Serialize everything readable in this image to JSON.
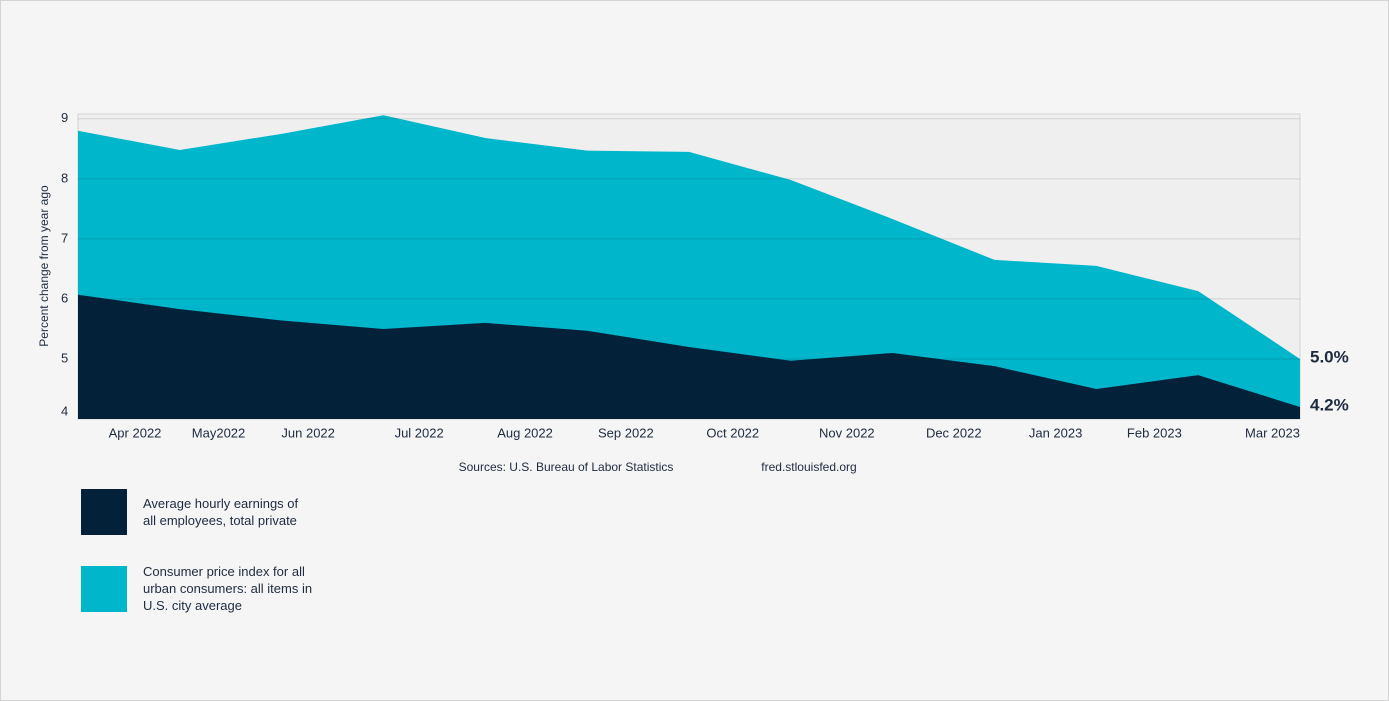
{
  "chart_data": {
    "type": "area",
    "y_label": "Percent change from year ago",
    "x": [
      0,
      1,
      2,
      3,
      4,
      5,
      6,
      7,
      8,
      9,
      10,
      11,
      12
    ],
    "xlim": [
      0,
      12
    ],
    "xticks": [
      {
        "value": 0.56,
        "label": "Apr 2022"
      },
      {
        "value": 1.38,
        "label": "May2022"
      },
      {
        "value": 2.26,
        "label": "Jun 2022"
      },
      {
        "value": 3.35,
        "label": "Jul 2022"
      },
      {
        "value": 4.39,
        "label": "Aug 2022"
      },
      {
        "value": 5.38,
        "label": "Sep 2022"
      },
      {
        "value": 6.43,
        "label": "Oct 2022"
      },
      {
        "value": 7.55,
        "label": "Nov 2022"
      },
      {
        "value": 8.6,
        "label": "Dec 2022"
      },
      {
        "value": 9.6,
        "label": "Jan 2023"
      },
      {
        "value": 10.57,
        "label": "Feb 2023"
      },
      {
        "value": 11.73,
        "label": "Mar 2023"
      }
    ],
    "ylim": [
      4,
      9.08
    ],
    "yticks": [
      4,
      5,
      6,
      7,
      8,
      9
    ],
    "grid": true,
    "series": [
      {
        "name": "Consumer price index for all urban consumers: all items in U.S. city average",
        "color": "#00b6cb",
        "label_color": "#1a94aa",
        "values": [
          8.8,
          8.48,
          8.75,
          9.06,
          8.68,
          8.47,
          8.45,
          7.98,
          7.33,
          6.65,
          6.55,
          6.13,
          5.0
        ],
        "value_labels": [
          null,
          null,
          null,
          null,
          null,
          null,
          null,
          null,
          null,
          null,
          null,
          null,
          "5.0%"
        ]
      },
      {
        "name": "Average hourly earnings of all employees, total private",
        "color": "#03223a",
        "label_color": "#1e2b3f",
        "values": [
          6.07,
          5.83,
          5.64,
          5.5,
          5.6,
          5.47,
          5.2,
          4.97,
          5.1,
          4.88,
          4.5,
          4.73,
          4.2
        ],
        "value_labels": [
          null,
          null,
          null,
          null,
          null,
          null,
          null,
          null,
          null,
          null,
          null,
          null,
          "4.2%"
        ]
      }
    ],
    "source": "Sources: U.S. Bureau of Labor Statistics",
    "site": "fred.stlouisfed.org"
  }
}
